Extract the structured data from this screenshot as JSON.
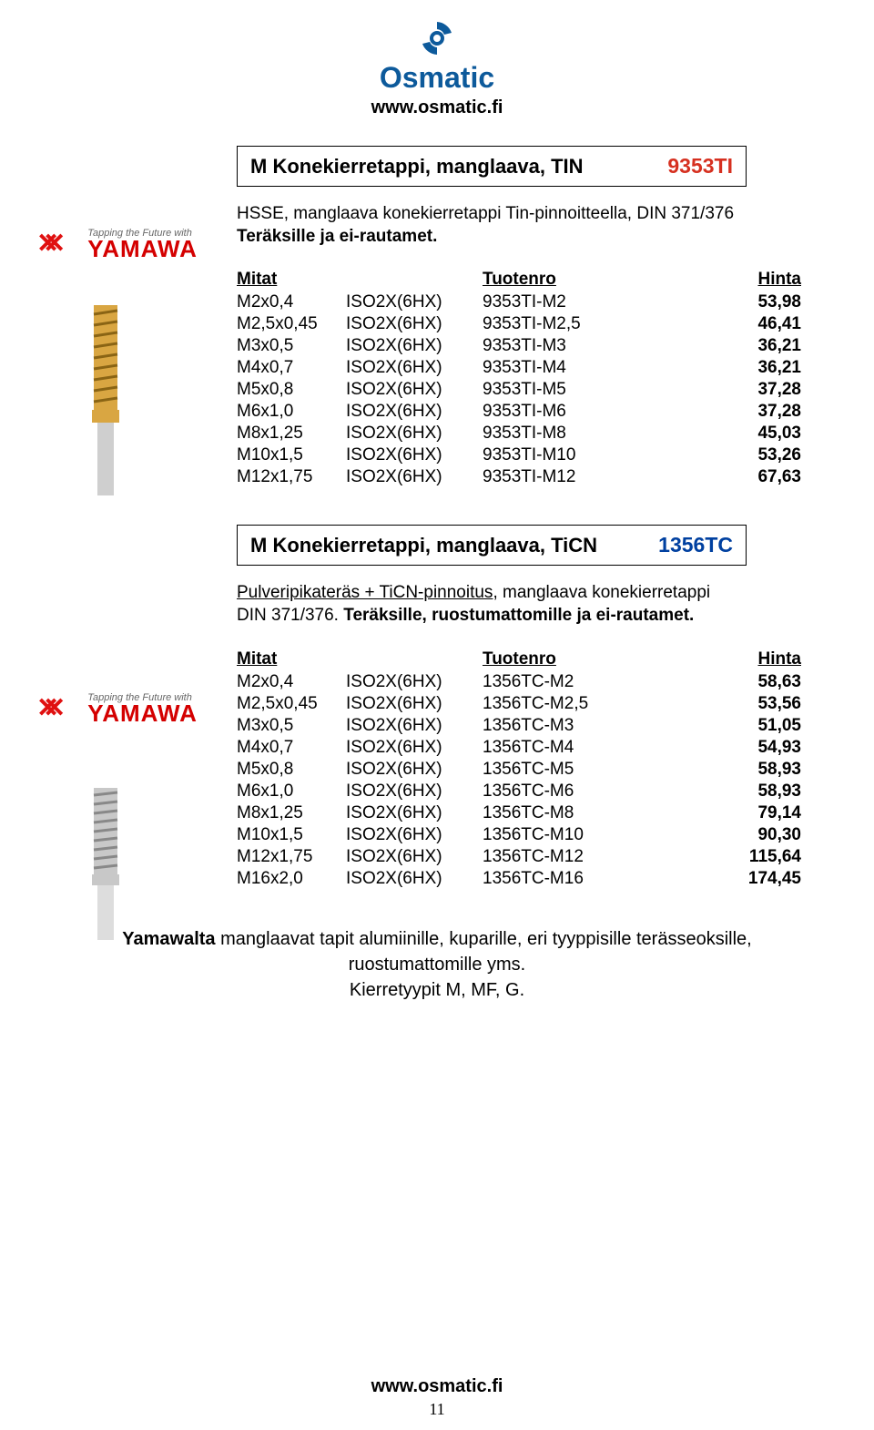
{
  "header": {
    "logo_name": "Osmatic",
    "logo_color": "#0d5a9b",
    "url": "www.osmatic.fi"
  },
  "yamawa": {
    "tagline": "Tapping the Future with",
    "brand": "YAMAWA",
    "symbol": "⌘"
  },
  "section1": {
    "title": "M Konekierretappi, manglaava, TIN",
    "code": "9353TI",
    "code_color": "#d63020",
    "desc_line1": "HSSE, manglaava konekierretappi Tin-pinnoitteella, DIN 371/376",
    "desc_line2_bold": "Teräksille ja ei-rautamet.",
    "table": {
      "headers": [
        "Mitat",
        "",
        "Tuotenro",
        "Hinta"
      ],
      "rows": [
        [
          "M2x0,4",
          "ISO2X(6HX)",
          "9353TI-M2",
          "53,98"
        ],
        [
          "M2,5x0,45",
          "ISO2X(6HX)",
          "9353TI-M2,5",
          "46,41"
        ],
        [
          "M3x0,5",
          "ISO2X(6HX)",
          "9353TI-M3",
          "36,21"
        ],
        [
          "M4x0,7",
          "ISO2X(6HX)",
          "9353TI-M4",
          "36,21"
        ],
        [
          "M5x0,8",
          "ISO2X(6HX)",
          "9353TI-M5",
          "37,28"
        ],
        [
          "M6x1,0",
          "ISO2X(6HX)",
          "9353TI-M6",
          "37,28"
        ],
        [
          "M8x1,25",
          "ISO2X(6HX)",
          "9353TI-M8",
          "45,03"
        ],
        [
          "M10x1,5",
          "ISO2X(6HX)",
          "9353TI-M10",
          "53,26"
        ],
        [
          "M12x1,75",
          "ISO2X(6HX)",
          "9353TI-M12",
          "67,63"
        ]
      ]
    }
  },
  "section2": {
    "title": "M Konekierretappi, manglaava, TiCN",
    "code": "1356TC",
    "code_color": "#0040a0",
    "desc_under": "Pulveripikateräs + TiCN-pinnoitus",
    "desc_after": ", manglaava konekierretappi",
    "desc_line2a": "DIN 371/376. ",
    "desc_line2b_bold": "Teräksille, ruostumattomille ja ei-rautamet.",
    "table": {
      "headers": [
        "Mitat",
        "",
        "Tuotenro",
        "Hinta"
      ],
      "rows": [
        [
          "M2x0,4",
          "ISO2X(6HX)",
          "1356TC-M2",
          "58,63"
        ],
        [
          "M2,5x0,45",
          "ISO2X(6HX)",
          "1356TC-M2,5",
          "53,56"
        ],
        [
          "M3x0,5",
          "ISO2X(6HX)",
          "1356TC-M3",
          "51,05"
        ],
        [
          "M4x0,7",
          "ISO2X(6HX)",
          "1356TC-M4",
          "54,93"
        ],
        [
          "M5x0,8",
          "ISO2X(6HX)",
          "1356TC-M5",
          "58,93"
        ],
        [
          "M6x1,0",
          "ISO2X(6HX)",
          "1356TC-M6",
          "58,93"
        ],
        [
          "M8x1,25",
          "ISO2X(6HX)",
          "1356TC-M8",
          "79,14"
        ],
        [
          "M10x1,5",
          "ISO2X(6HX)",
          "1356TC-M10",
          "90,30"
        ],
        [
          "M12x1,75",
          "ISO2X(6HX)",
          "1356TC-M12",
          "115,64"
        ],
        [
          "M16x2,0",
          "ISO2X(6HX)",
          "1356TC-M16",
          "174,45"
        ]
      ]
    }
  },
  "footer": {
    "lead": "Yamawalta",
    "line1_rest": " manglaavat tapit alumiinille, kuparille, eri tyyppisille terässeoksille,",
    "line2": "ruostumattomille yms.",
    "line3": "Kierretyypit M, MF, G."
  },
  "bottom_url": "www.osmatic.fi",
  "page_number": "11"
}
